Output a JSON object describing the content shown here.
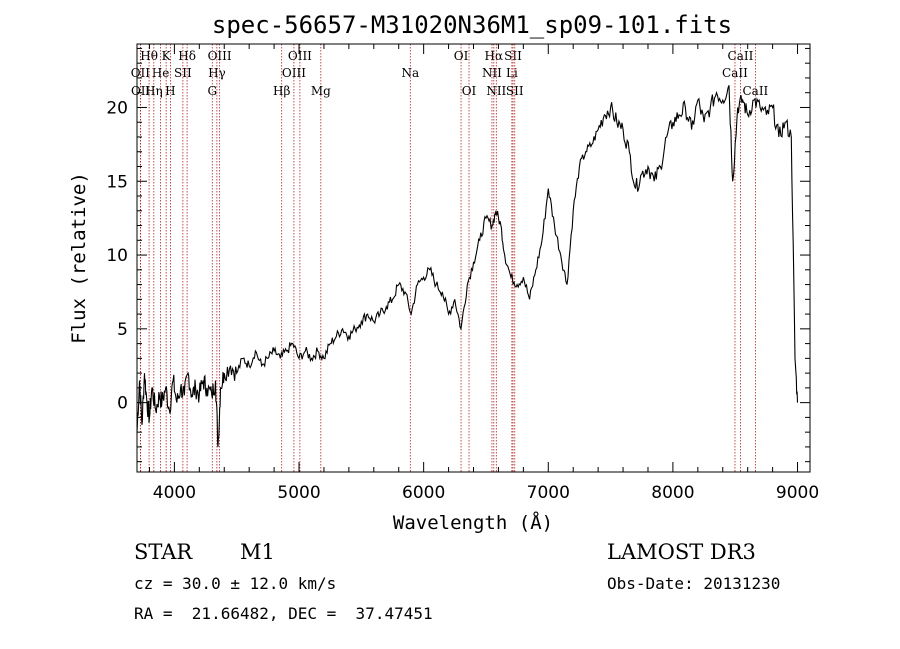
{
  "chart_data": {
    "type": "line",
    "title": "spec-56657-M31020N36M1_sp09-101.fits",
    "xlabel": "Wavelength (Å)",
    "ylabel": "Flux (relative)",
    "xlim": [
      3700,
      9100
    ],
    "ylim": [
      -4.7,
      24.3
    ],
    "xticks": [
      4000,
      5000,
      6000,
      7000,
      8000,
      9000
    ],
    "yticks": [
      0,
      5,
      10,
      15,
      20
    ],
    "grid": false,
    "series": [
      {
        "x": [
          3700,
          3720,
          3740,
          3760,
          3780,
          3800,
          3820,
          3850,
          3880,
          3900,
          3930,
          3960,
          3990,
          4020,
          4050,
          4080,
          4110,
          4140,
          4170,
          4200,
          4230,
          4260,
          4300,
          4330,
          4350,
          4370,
          4400,
          4450,
          4500,
          4550,
          4600,
          4650,
          4700,
          4750,
          4800,
          4850,
          4900,
          4950,
          5000,
          5050,
          5100,
          5150,
          5200,
          5250,
          5300,
          5350,
          5400,
          5450,
          5500,
          5550,
          5600,
          5650,
          5700,
          5750,
          5800,
          5850,
          5900,
          5950,
          6000,
          6050,
          6100,
          6150,
          6200,
          6250,
          6300,
          6350,
          6400,
          6450,
          6500,
          6550,
          6580,
          6620,
          6650,
          6700,
          6750,
          6800,
          6850,
          6900,
          6950,
          7000,
          7050,
          7100,
          7150,
          7200,
          7250,
          7300,
          7350,
          7400,
          7450,
          7500,
          7550,
          7600,
          7650,
          7700,
          7750,
          7800,
          7850,
          7900,
          7950,
          8000,
          8050,
          8100,
          8150,
          8200,
          8250,
          8300,
          8350,
          8400,
          8450,
          8480,
          8520,
          8560,
          8600,
          8650,
          8700,
          8750,
          8800,
          8850,
          8900,
          8950,
          8980,
          9000
        ],
        "y": [
          -2.0,
          1.5,
          -1.5,
          2.0,
          0.0,
          -1.0,
          1.0,
          -0.5,
          0.5,
          0.0,
          1.0,
          -0.5,
          1.5,
          0.0,
          1.0,
          0.5,
          2.0,
          0.5,
          1.0,
          0.5,
          1.5,
          1.0,
          0.5,
          1.5,
          -3.0,
          1.0,
          2.0,
          2.5,
          2.0,
          3.0,
          2.5,
          3.5,
          2.5,
          3.0,
          3.5,
          3.0,
          3.5,
          4.0,
          3.0,
          3.5,
          3.0,
          3.5,
          3.0,
          4.0,
          4.5,
          5.0,
          4.5,
          5.0,
          5.5,
          6.0,
          5.5,
          6.0,
          6.5,
          7.0,
          8.0,
          7.5,
          6.0,
          8.0,
          8.5,
          9.0,
          8.0,
          7.5,
          6.0,
          7.0,
          5.0,
          8.0,
          9.5,
          11.0,
          12.5,
          12.0,
          13.0,
          12.0,
          10.0,
          8.5,
          8.0,
          8.5,
          7.0,
          9.0,
          11.0,
          14.5,
          12.0,
          10.0,
          8.0,
          13.0,
          16.0,
          17.0,
          17.5,
          18.5,
          19.5,
          20.0,
          19.0,
          18.5,
          17.0,
          14.5,
          15.5,
          16.0,
          15.0,
          16.0,
          18.0,
          19.0,
          19.5,
          20.0,
          18.5,
          20.5,
          19.0,
          20.0,
          21.0,
          20.5,
          21.5,
          15.0,
          20.0,
          20.5,
          19.5,
          20.5,
          20.0,
          19.5,
          20.0,
          18.0,
          19.0,
          18.0,
          3.0,
          0.0
        ]
      }
    ],
    "lines": [
      {
        "name": "Hθ",
        "x": 3797,
        "row": 0
      },
      {
        "name": "K",
        "x": 3934,
        "row": 0
      },
      {
        "name": "Hδ",
        "x": 4102,
        "row": 0
      },
      {
        "name": "OIII",
        "x": 4363,
        "row": 0
      },
      {
        "name": "OIII",
        "x": 5007,
        "row": 0
      },
      {
        "name": "OI",
        "x": 6300,
        "row": 0
      },
      {
        "name": "Hα",
        "x": 6563,
        "row": 0
      },
      {
        "name": "SII",
        "x": 6717,
        "row": 0
      },
      {
        "name": "CaII",
        "x": 8542,
        "row": 0
      },
      {
        "name": "OII",
        "x": 3727,
        "row": 1
      },
      {
        "name": "He",
        "x": 3889,
        "row": 1
      },
      {
        "name": "SII",
        "x": 4068,
        "row": 1
      },
      {
        "name": "Hγ",
        "x": 4341,
        "row": 1
      },
      {
        "name": "OIII",
        "x": 4959,
        "row": 1
      },
      {
        "name": "Na",
        "x": 5893,
        "row": 1
      },
      {
        "name": "NII",
        "x": 6548,
        "row": 1
      },
      {
        "name": "Li",
        "x": 6708,
        "row": 1
      },
      {
        "name": "CaII",
        "x": 8498,
        "row": 1
      },
      {
        "name": "OII",
        "x": 3729,
        "row": 2
      },
      {
        "name": "Hη",
        "x": 3835,
        "row": 2
      },
      {
        "name": "H",
        "x": 3968,
        "row": 2
      },
      {
        "name": "G",
        "x": 4304,
        "row": 2
      },
      {
        "name": "Hβ",
        "x": 4861,
        "row": 2
      },
      {
        "name": "Mg",
        "x": 5175,
        "row": 2
      },
      {
        "name": "OI",
        "x": 6364,
        "row": 2
      },
      {
        "name": "NII",
        "x": 6583,
        "row": 2
      },
      {
        "name": "SII",
        "x": 6731,
        "row": 2
      },
      {
        "name": "CaII",
        "x": 8662,
        "row": 2
      }
    ]
  },
  "info": {
    "class": "STAR",
    "subclass": "M1",
    "survey": "LAMOST DR3",
    "cz": "cz = 30.0 ± 12.0 km/s",
    "obs_date": "Obs-Date: 20131230",
    "coords": "RA =  21.66482, DEC =  37.47451"
  }
}
